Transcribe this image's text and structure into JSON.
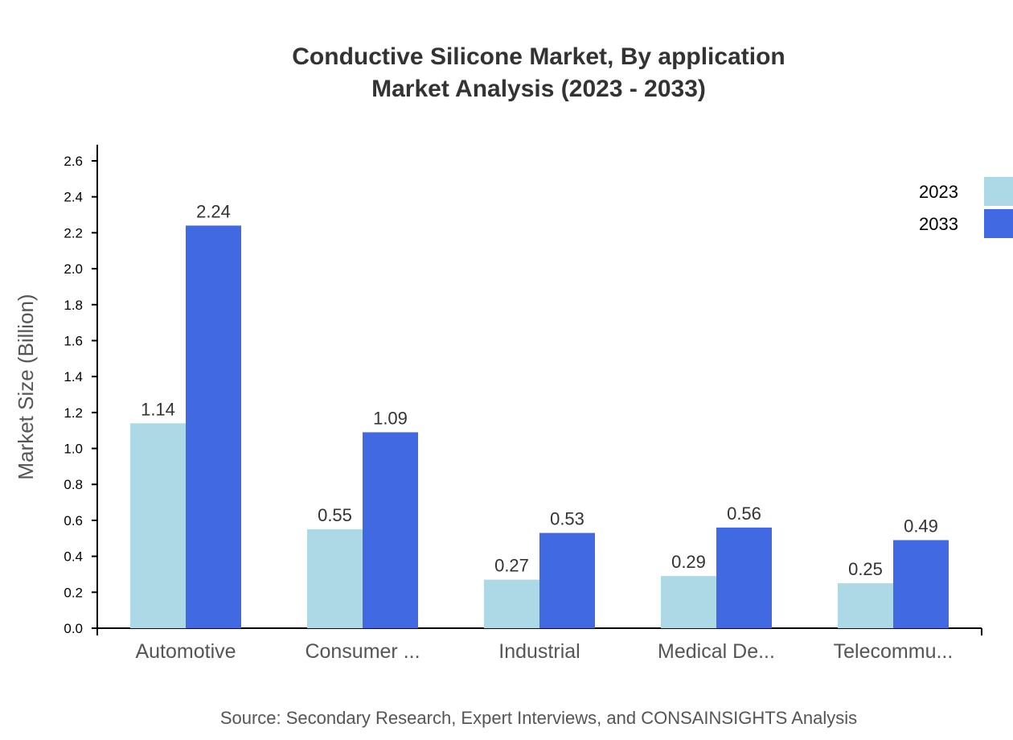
{
  "chart_data": {
    "type": "bar",
    "title": "Conductive Silicone Market, By application",
    "subtitle": "Market Analysis (2023 - 2033)",
    "xlabel": "",
    "ylabel": "Market Size (Billion)",
    "ylim": [
      0,
      2.69
    ],
    "yticks": [
      "0.0",
      "0.2",
      "0.4",
      "0.6",
      "0.8",
      "1.0",
      "1.2",
      "1.4",
      "1.6",
      "1.8",
      "2.0",
      "2.2",
      "2.4",
      "2.6"
    ],
    "categories": [
      "Automotive",
      "Consumer ...",
      "Industrial",
      "Medical De...",
      "Telecommu..."
    ],
    "series": [
      {
        "name": "2023",
        "color": "#add8e6",
        "values": [
          1.14,
          0.55,
          0.27,
          0.29,
          0.25
        ],
        "labels": [
          "1.14",
          "0.55",
          "0.27",
          "0.29",
          "0.25"
        ]
      },
      {
        "name": "2033",
        "color": "#4169e1",
        "values": [
          2.24,
          1.09,
          0.53,
          0.56,
          0.49
        ],
        "labels": [
          "2.24",
          "1.09",
          "0.53",
          "0.56",
          "0.49"
        ]
      }
    ],
    "grid": false,
    "legend": "top-right",
    "source": "Source: Secondary Research, Expert Interviews, and CONSAINSIGHTS Analysis"
  }
}
